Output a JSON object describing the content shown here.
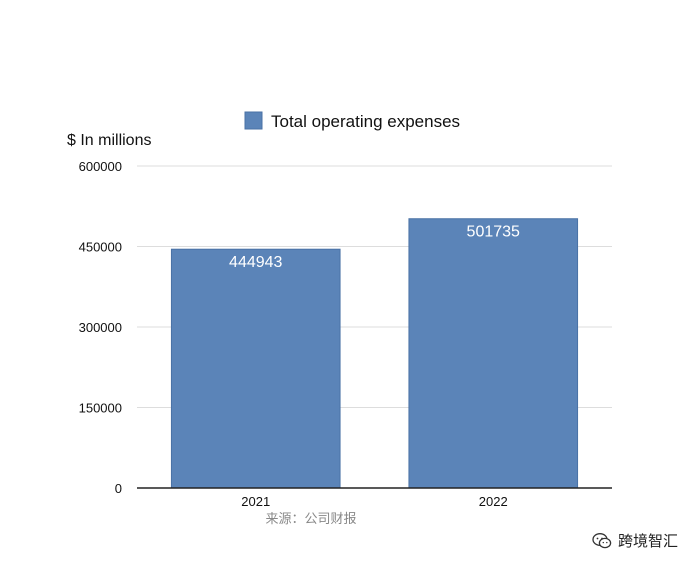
{
  "chart_data": {
    "type": "bar",
    "title": "",
    "ylabel": "$ In millions",
    "xlabel": "",
    "categories": [
      "2021",
      "2022"
    ],
    "series": [
      {
        "name": "Total operating expenses",
        "values": [
          444943,
          501735
        ]
      }
    ],
    "ylim": [
      0,
      600000
    ],
    "yticks": [
      "0",
      "150000",
      "300000",
      "450000",
      "600000"
    ],
    "grid": true,
    "legend": "top",
    "colors": {
      "bar": "#5b84b8",
      "bar_border": "#4a72a6",
      "grid": "#dddddd",
      "axis": "#222222",
      "label": "#ffffff"
    }
  },
  "source_note": "来源：公司财报",
  "watermark": {
    "icon": "wechat-icon",
    "text": "跨境智汇"
  }
}
